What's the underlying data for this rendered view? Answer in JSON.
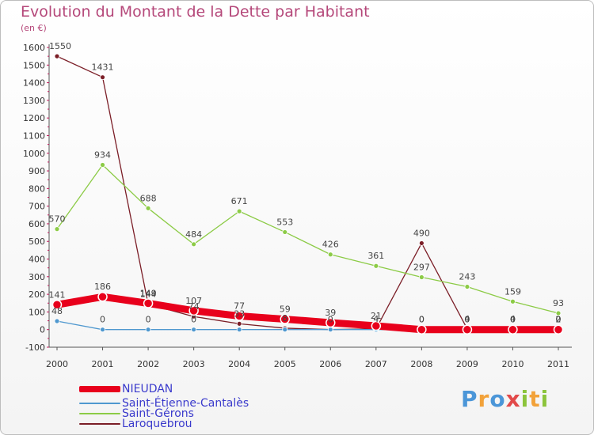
{
  "header": {
    "title": "Evolution du Montant de la Dette par Habitant",
    "unit": "(en €)"
  },
  "logo": {
    "text": "Proxiti"
  },
  "chart_data": {
    "type": "line",
    "title": "Evolution du Montant de la Dette par Habitant",
    "ylabel": "(en €)",
    "x": [
      "2000",
      "2001",
      "2002",
      "2003",
      "2004",
      "2005",
      "2006",
      "2007",
      "2008",
      "2009",
      "2010",
      "2011"
    ],
    "ylim": [
      -100,
      1600
    ],
    "yticks": [
      "-100",
      "0",
      "100",
      "200",
      "300",
      "400",
      "500",
      "600",
      "700",
      "800",
      "900",
      "1000",
      "1100",
      "1200",
      "1300",
      "1400",
      "1500",
      "1600"
    ],
    "grid": false,
    "legend_position": "bottom-left",
    "series": [
      {
        "name": "NIEUDAN",
        "color": "#e8001c",
        "values": [
          141,
          186,
          149,
          107,
          77,
          59,
          39,
          21,
          0,
          0,
          0,
          0
        ],
        "labels": [
          "141",
          "186",
          "149",
          "107",
          "77",
          "59",
          "39",
          "21",
          "0",
          "0",
          "0",
          "0"
        ]
      },
      {
        "name": "Saint-Étienne-Cantalès",
        "color": "#4f98cf",
        "values": [
          48,
          0,
          0,
          0,
          0,
          0,
          0,
          0,
          0,
          0,
          0,
          0
        ],
        "labels": [
          "48",
          "0",
          "0",
          "0",
          "",
          "",
          "",
          "",
          "0",
          "0",
          "0",
          "0"
        ]
      },
      {
        "name": "Saint-Gérons",
        "color": "#8ccb46",
        "values": [
          570,
          934,
          688,
          484,
          671,
          553,
          426,
          361,
          297,
          243,
          159,
          93
        ],
        "labels": [
          "570",
          "934",
          "688",
          "484",
          "671",
          "553",
          "426",
          "361",
          "297",
          "243",
          "159",
          "93"
        ]
      },
      {
        "name": "Laroquebrou",
        "color": "#7b1e27",
        "values": [
          1550,
          1431,
          144,
          74,
          33,
          8,
          0,
          4,
          490,
          4,
          4,
          2
        ],
        "labels": [
          "1550",
          "1431",
          "144",
          "74",
          "33",
          "8",
          "0",
          "4",
          "490",
          "4",
          "4",
          "2"
        ]
      }
    ]
  }
}
